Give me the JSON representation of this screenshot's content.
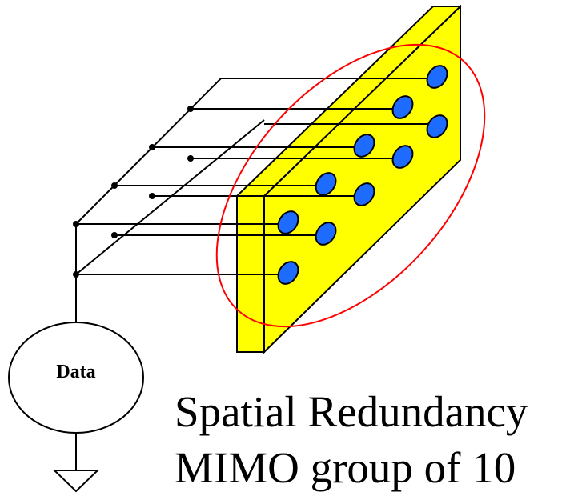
{
  "diagram": {
    "source_label": "Data",
    "caption_line1": "Spatial Redundancy",
    "caption_line2": "MIMO group of 10",
    "element_count": 10
  },
  "colors": {
    "panel_face": "#ffff00",
    "panel_side": "#cccc00",
    "antenna_fill": "#1e6cff",
    "group_ellipse": "#ff0000",
    "wire": "#000000"
  }
}
